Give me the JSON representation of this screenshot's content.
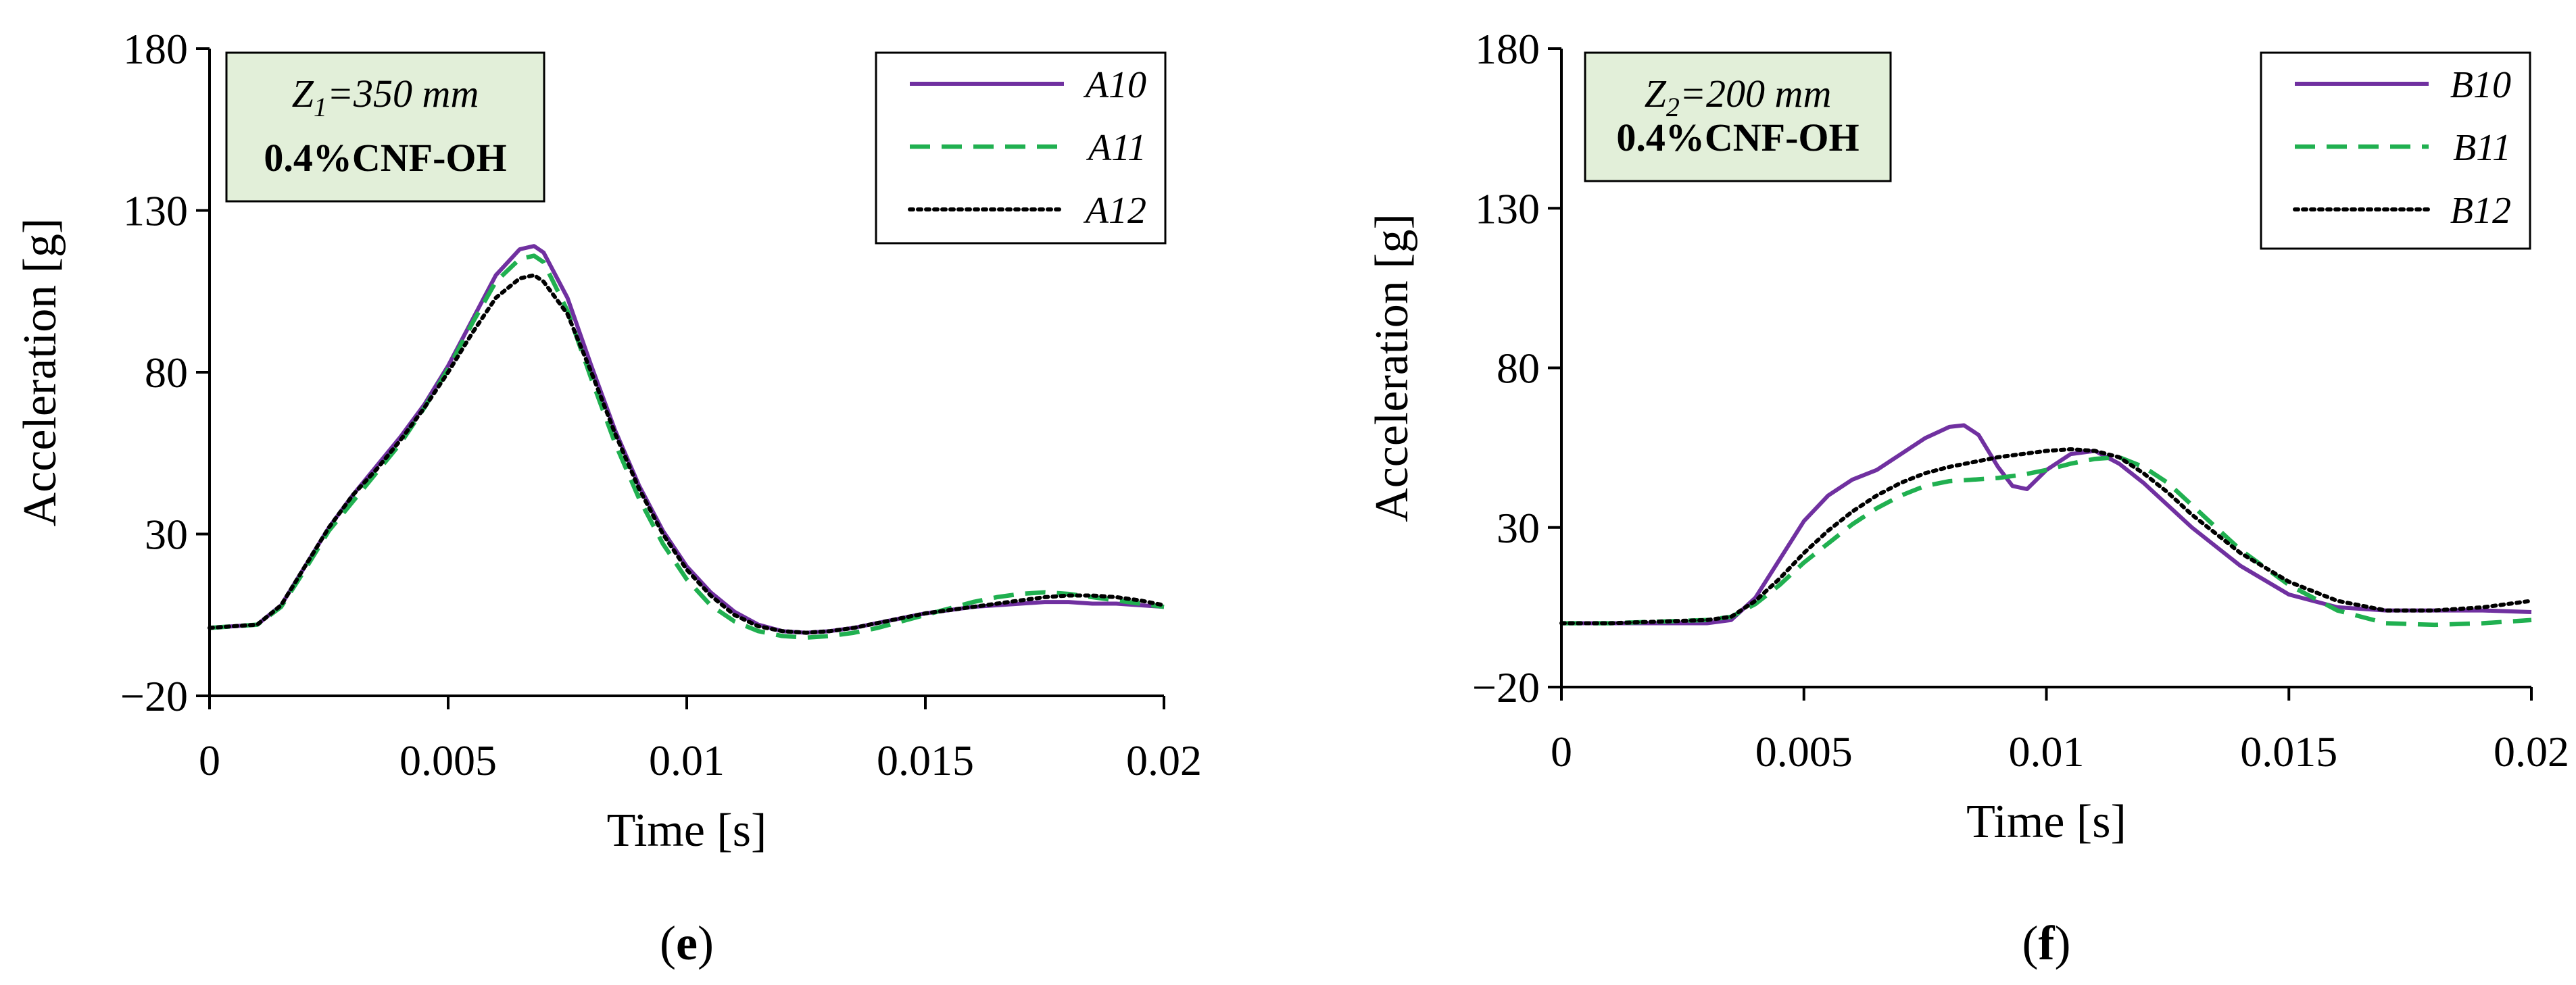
{
  "chart_data": [
    {
      "type": "line",
      "panel_label": "e",
      "xlabel": "Time [s]",
      "ylabel": "Acceleration [g]",
      "xlim": [
        0,
        0.02
      ],
      "ylim": [
        -20,
        180
      ],
      "xticks": [
        0,
        0.005,
        0.01,
        0.015,
        0.02
      ],
      "xtick_labels": [
        "0",
        "0.005",
        "0.01",
        "0.015",
        "0.02"
      ],
      "yticks": [
        -20,
        30,
        80,
        130,
        180
      ],
      "ytick_labels": [
        "−20",
        "30",
        "80",
        "130",
        "180"
      ],
      "annotation": {
        "z_symbol": "Z",
        "z_sub": "1",
        "z_value": "=350 mm",
        "material": "0.4%CNF-OH"
      },
      "legend_position": "top-right",
      "series": [
        {
          "name": "A10",
          "color": "#7030a0",
          "dash": "solid",
          "x": [
            0,
            0.001,
            0.0015,
            0.002,
            0.0025,
            0.003,
            0.0035,
            0.004,
            0.0045,
            0.005,
            0.0055,
            0.006,
            0.0065,
            0.0068,
            0.007,
            0.0075,
            0.008,
            0.0085,
            0.009,
            0.0095,
            0.01,
            0.0105,
            0.011,
            0.0115,
            0.012,
            0.0125,
            0.013,
            0.0135,
            0.014,
            0.0145,
            0.015,
            0.0155,
            0.016,
            0.0165,
            0.017,
            0.0175,
            0.018,
            0.0185,
            0.019,
            0.0195,
            0.02
          ],
          "y": [
            1,
            2,
            8,
            20,
            32,
            42,
            51,
            60,
            70,
            82,
            96,
            110,
            118,
            119,
            117,
            103,
            82,
            62,
            45,
            31,
            20,
            12,
            6,
            2,
            0,
            -0.5,
            0,
            1,
            2.5,
            4,
            5.5,
            6.5,
            7.5,
            8,
            8.5,
            9,
            9,
            8.5,
            8.5,
            8,
            7.5
          ]
        },
        {
          "name": "A11",
          "color": "#20b050",
          "dash": "dashed",
          "x": [
            0,
            0.001,
            0.0015,
            0.002,
            0.0025,
            0.003,
            0.0035,
            0.004,
            0.0045,
            0.005,
            0.0055,
            0.006,
            0.0065,
            0.0068,
            0.007,
            0.0075,
            0.008,
            0.0085,
            0.009,
            0.0095,
            0.01,
            0.0105,
            0.011,
            0.0115,
            0.012,
            0.0125,
            0.013,
            0.0135,
            0.014,
            0.0145,
            0.015,
            0.0155,
            0.016,
            0.0165,
            0.017,
            0.0175,
            0.018,
            0.0185,
            0.019,
            0.0195,
            0.02
          ],
          "y": [
            1,
            2,
            7.5,
            19,
            31,
            40,
            49,
            58,
            69,
            81,
            95,
            108,
            115,
            116,
            114,
            99,
            78,
            58,
            41,
            27,
            16,
            8,
            3,
            0,
            -1.5,
            -2,
            -1.5,
            -0.5,
            1,
            3,
            5,
            7,
            9,
            10.5,
            11.5,
            12,
            11.5,
            10.5,
            9.5,
            8.5,
            7.5
          ]
        },
        {
          "name": "A12",
          "color": "#000000",
          "dash": "dotted",
          "x": [
            0,
            0.001,
            0.0015,
            0.002,
            0.0025,
            0.003,
            0.0035,
            0.004,
            0.0045,
            0.005,
            0.0055,
            0.006,
            0.0065,
            0.0068,
            0.007,
            0.0075,
            0.008,
            0.0085,
            0.009,
            0.0095,
            0.01,
            0.0105,
            0.011,
            0.0115,
            0.012,
            0.0125,
            0.013,
            0.0135,
            0.014,
            0.0145,
            0.015,
            0.0155,
            0.016,
            0.0165,
            0.017,
            0.0175,
            0.018,
            0.0185,
            0.019,
            0.0195,
            0.02
          ],
          "y": [
            1,
            2,
            8,
            20,
            32,
            42,
            50,
            59,
            69,
            80,
            92,
            103,
            109,
            110,
            108,
            98,
            80,
            61,
            44,
            30,
            19,
            11,
            5,
            1.5,
            0,
            -0.5,
            0,
            1,
            2.5,
            4,
            5.5,
            6.5,
            7.5,
            8.5,
            9.5,
            10.5,
            11,
            11,
            10.5,
            9.5,
            8
          ]
        }
      ]
    },
    {
      "type": "line",
      "panel_label": "f",
      "xlabel": "Time [s]",
      "ylabel": "Acceleration [g]",
      "xlim": [
        0,
        0.02
      ],
      "ylim": [
        -20,
        180
      ],
      "xticks": [
        0,
        0.005,
        0.01,
        0.015,
        0.02
      ],
      "xtick_labels": [
        "0",
        "0.005",
        "0.01",
        "0.015",
        "0.02"
      ],
      "yticks": [
        -20,
        30,
        80,
        130,
        180
      ],
      "ytick_labels": [
        "−20",
        "30",
        "80",
        "130",
        "180"
      ],
      "annotation": {
        "z_symbol": "Z",
        "z_sub": "2",
        "z_value": "=200 mm",
        "material": "0.4%CNF-OH"
      },
      "legend_position": "top-right",
      "series": [
        {
          "name": "B10",
          "color": "#7030a0",
          "dash": "solid",
          "x": [
            0,
            0.001,
            0.002,
            0.003,
            0.0035,
            0.004,
            0.0045,
            0.005,
            0.0055,
            0.006,
            0.0065,
            0.007,
            0.0075,
            0.008,
            0.0083,
            0.0086,
            0.009,
            0.0093,
            0.0096,
            0.01,
            0.0105,
            0.011,
            0.0115,
            0.012,
            0.0125,
            0.013,
            0.014,
            0.015,
            0.016,
            0.017,
            0.018,
            0.019,
            0.02
          ],
          "y": [
            0,
            0,
            0,
            0,
            1,
            8,
            20,
            32,
            40,
            45,
            48,
            53,
            58,
            61.5,
            62,
            59,
            49,
            43,
            42,
            48,
            53,
            54,
            50,
            44,
            37,
            30,
            18,
            9,
            5,
            4,
            4,
            4,
            3.5
          ]
        },
        {
          "name": "B11",
          "color": "#20b050",
          "dash": "dashed",
          "x": [
            0,
            0.001,
            0.002,
            0.003,
            0.0035,
            0.004,
            0.0045,
            0.005,
            0.0055,
            0.006,
            0.0065,
            0.007,
            0.0075,
            0.008,
            0.0085,
            0.009,
            0.0095,
            0.01,
            0.0105,
            0.011,
            0.0115,
            0.012,
            0.0125,
            0.013,
            0.0135,
            0.014,
            0.015,
            0.016,
            0.017,
            0.018,
            0.019,
            0.02
          ],
          "y": [
            0,
            0,
            0.5,
            1,
            2,
            6,
            12,
            19,
            25,
            31,
            36,
            40,
            43,
            44.5,
            45,
            45.5,
            46.5,
            48,
            50,
            51.5,
            52,
            49,
            44,
            37,
            30,
            23,
            12,
            4,
            0,
            -0.5,
            0,
            1
          ]
        },
        {
          "name": "B12",
          "color": "#000000",
          "dash": "dotted",
          "x": [
            0,
            0.001,
            0.002,
            0.003,
            0.0035,
            0.004,
            0.0045,
            0.005,
            0.0055,
            0.006,
            0.0065,
            0.007,
            0.0075,
            0.008,
            0.0085,
            0.009,
            0.0095,
            0.01,
            0.0105,
            0.011,
            0.0115,
            0.012,
            0.0125,
            0.013,
            0.0135,
            0.014,
            0.015,
            0.016,
            0.017,
            0.018,
            0.019,
            0.02
          ],
          "y": [
            0,
            0,
            0.5,
            1,
            2,
            7,
            14,
            22,
            29,
            35,
            40,
            44,
            47,
            49,
            50.5,
            52,
            53,
            54,
            54.5,
            54,
            52,
            47,
            41,
            34,
            28,
            22,
            13,
            7,
            4,
            4,
            5,
            7
          ]
        }
      ]
    }
  ]
}
